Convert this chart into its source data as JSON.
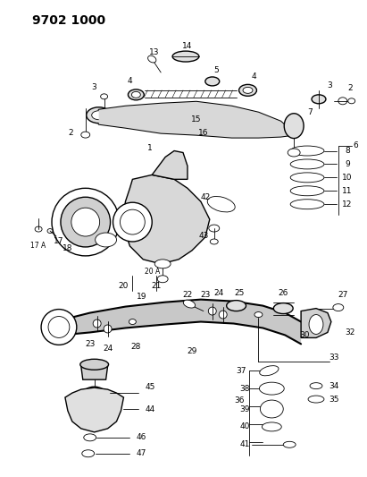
{
  "title": "9702 1000",
  "bg_color": "#ffffff",
  "line_color": "#000000",
  "title_fontsize": 10,
  "label_fontsize": 6.5,
  "fig_width": 4.11,
  "fig_height": 5.33,
  "dpi": 100
}
